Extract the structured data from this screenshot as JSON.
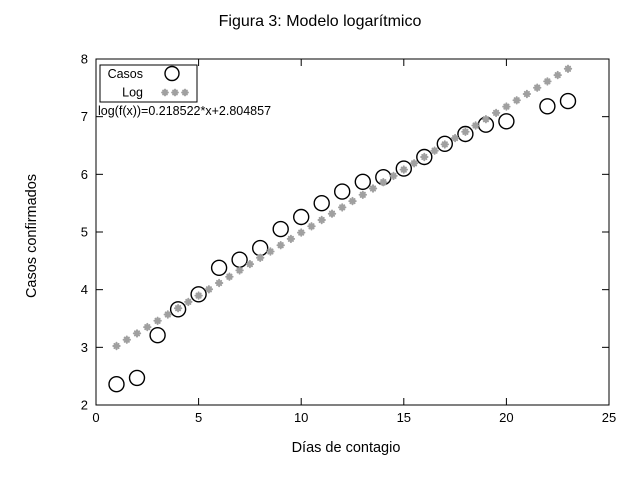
{
  "colors": {
    "background": "#ffffff",
    "axis": "#000000",
    "points": "#000000",
    "fit_line": "#a0a0a0"
  },
  "chart_data": {
    "type": "scatter",
    "title": "Figura 3: Modelo logarítmico",
    "xlabel": "Días de contagio",
    "ylabel": "Casos confirmados",
    "xlim": [
      0,
      25
    ],
    "ylim": [
      2,
      8
    ],
    "xticks": [
      0,
      5,
      10,
      15,
      20,
      25
    ],
    "yticks": [
      2,
      3,
      4,
      5,
      6,
      7,
      8
    ],
    "grid": false,
    "legend_position": "top-left",
    "annotation": "log(f(x))=0.218522*x+2.804857",
    "series": [
      {
        "name": "Casos",
        "type": "scatter",
        "marker": "open-circle",
        "color": "#000000",
        "x": [
          1,
          2,
          3,
          4,
          5,
          6,
          7,
          8,
          9,
          10,
          11,
          12,
          13,
          14,
          15,
          16,
          17,
          18,
          19,
          20,
          22,
          23
        ],
        "y": [
          2.36,
          2.47,
          3.21,
          3.66,
          3.92,
          4.38,
          4.52,
          4.72,
          5.05,
          5.26,
          5.5,
          5.7,
          5.87,
          5.95,
          6.1,
          6.3,
          6.53,
          6.7,
          6.86,
          6.92,
          7.18,
          7.27
        ]
      },
      {
        "name": "Log",
        "type": "line-markers",
        "marker": "asterisk",
        "color": "#a0a0a0",
        "fit": {
          "slope": 0.218522,
          "intercept": 2.804857,
          "x_start": 1,
          "x_end": 23,
          "x_step": 0.5
        }
      }
    ]
  }
}
